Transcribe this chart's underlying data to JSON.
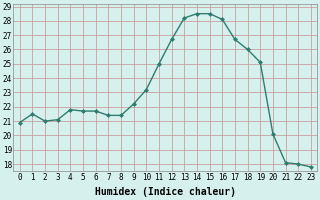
{
  "x": [
    0,
    1,
    2,
    3,
    4,
    5,
    6,
    7,
    8,
    9,
    10,
    11,
    12,
    13,
    14,
    15,
    16,
    17,
    18,
    19,
    20,
    21,
    22,
    23
  ],
  "y": [
    20.9,
    21.5,
    21.0,
    21.1,
    21.8,
    21.7,
    21.7,
    21.4,
    21.4,
    22.2,
    23.2,
    25.0,
    26.7,
    28.2,
    28.5,
    28.5,
    28.1,
    26.7,
    26.0,
    25.1,
    20.1,
    18.1,
    18.0,
    17.8
  ],
  "line_color": "#2e7d6e",
  "marker": "D",
  "marker_size": 2.0,
  "bg_color": "#d6f0ee",
  "grid_color": "#c9a0a0",
  "title": "",
  "xlabel": "Humidex (Indice chaleur)",
  "ylabel": "",
  "xlim": [
    -0.5,
    23.5
  ],
  "ylim": [
    17.5,
    29.2
  ],
  "yticks": [
    18,
    19,
    20,
    21,
    22,
    23,
    24,
    25,
    26,
    27,
    28,
    29
  ],
  "xticks": [
    0,
    1,
    2,
    3,
    4,
    5,
    6,
    7,
    8,
    9,
    10,
    11,
    12,
    13,
    14,
    15,
    16,
    17,
    18,
    19,
    20,
    21,
    22,
    23
  ],
  "tick_label_size": 5.5,
  "xlabel_size": 7,
  "line_width": 1.0
}
